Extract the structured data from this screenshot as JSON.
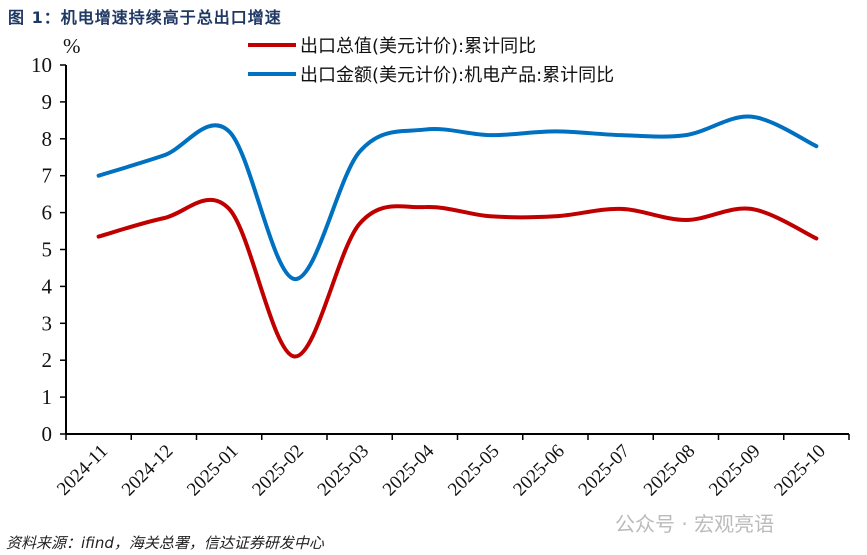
{
  "title": "图 1：机电增速持续高于总出口增速",
  "source": "资料来源：ifind，海关总署，信达证券研发中心",
  "watermark": "公众号 · 宏观亮语",
  "chart_data": {
    "type": "line",
    "title": "图 1：机电增速持续高于总出口增速",
    "xlabel": "",
    "ylabel": "%",
    "ylim": [
      0,
      10
    ],
    "yticks": [
      0,
      1,
      2,
      3,
      4,
      5,
      6,
      7,
      8,
      9,
      10
    ],
    "grid": false,
    "legend_position": "top",
    "categories": [
      "2024-11",
      "2024-12",
      "2025-01",
      "2025-02",
      "2025-03",
      "2025-04",
      "2025-05",
      "2025-06",
      "2025-07",
      "2025-08",
      "2025-09",
      "2025-10"
    ],
    "series": [
      {
        "name": "出口总值(美元计价):累计同比",
        "color": "#c00000",
        "values": [
          5.35,
          5.85,
          6.1,
          2.1,
          5.7,
          6.15,
          5.9,
          5.9,
          6.1,
          5.8,
          6.1,
          5.3
        ]
      },
      {
        "name": "出口金额(美元计价):机电产品:累计同比",
        "color": "#0070c0",
        "values": [
          7.0,
          7.55,
          8.2,
          4.2,
          7.65,
          8.25,
          8.1,
          8.2,
          8.1,
          8.1,
          8.6,
          7.8
        ]
      }
    ]
  }
}
